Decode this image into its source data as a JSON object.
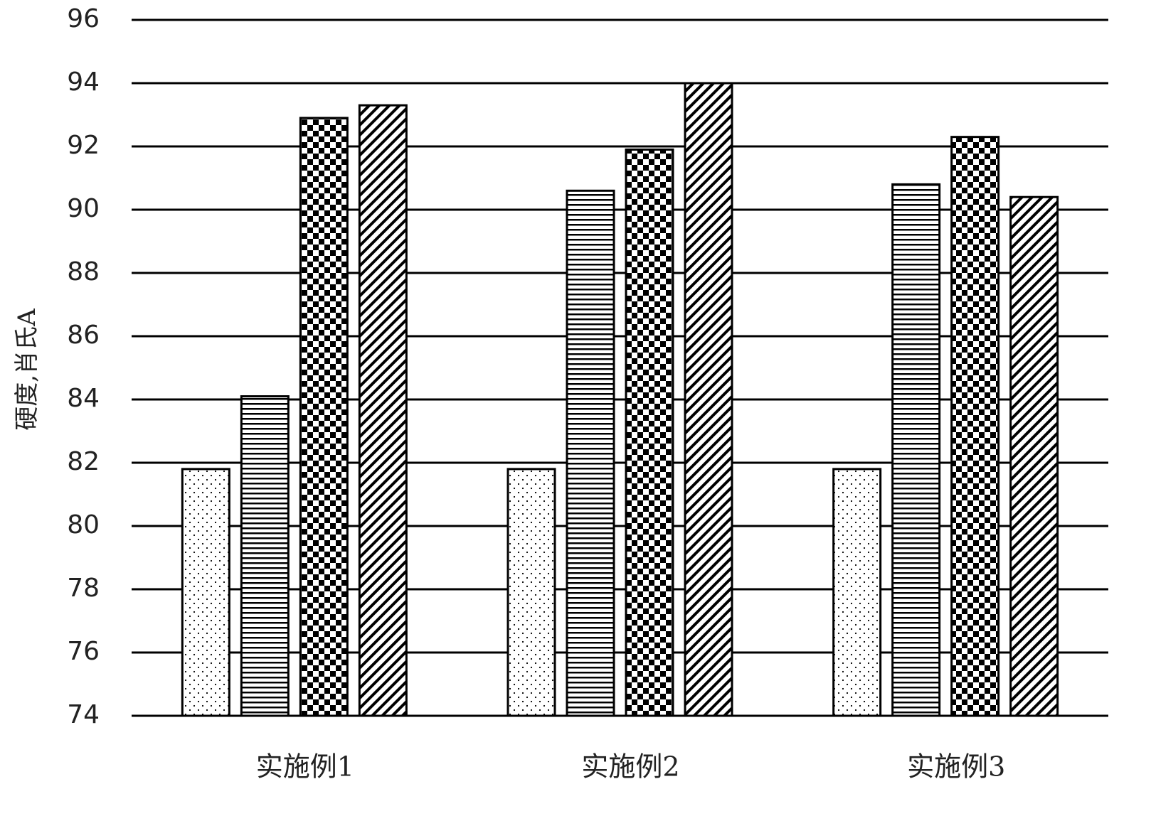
{
  "chart_data": {
    "type": "bar",
    "y_label": "硬度,肖氏A",
    "categories": [
      "实施例1",
      "实施例2",
      "实施例3"
    ],
    "series": [
      {
        "color": "#000000",
        "pattern": "dots",
        "values": [
          81.8,
          81.8,
          81.8
        ]
      },
      {
        "color": "#000000",
        "pattern": "hlines",
        "values": [
          84.1,
          90.6,
          90.8
        ]
      },
      {
        "color": "#000000",
        "pattern": "checker",
        "values": [
          92.9,
          91.9,
          92.3
        ]
      },
      {
        "color": "#000000",
        "pattern": "diagonal",
        "values": [
          93.3,
          94.0,
          90.4
        ]
      }
    ],
    "ylim": [
      74,
      96
    ],
    "yticks": [
      74,
      76,
      78,
      80,
      82,
      84,
      86,
      88,
      90,
      92,
      94,
      96
    ],
    "grid": true
  }
}
